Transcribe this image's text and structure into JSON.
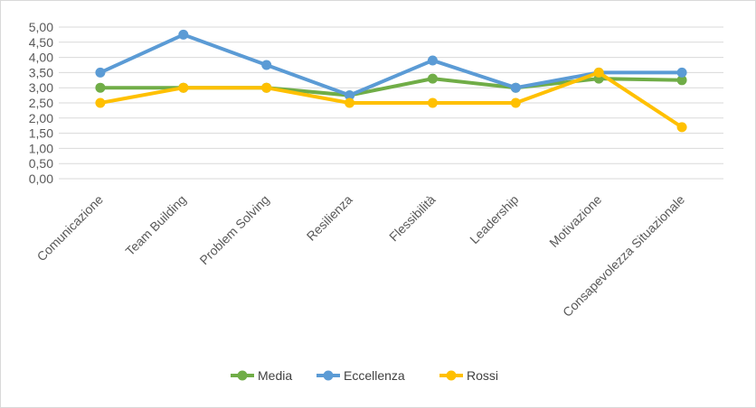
{
  "chart_data": {
    "type": "line",
    "categories": [
      "Comunicazione",
      "Team Building",
      "Problem Solving",
      "Resilienza",
      "Flessibilità",
      "Leadership",
      "Motivazione",
      "Consapevolezza Situazionale"
    ],
    "y_tick_labels": [
      "0,00",
      "0,50",
      "1,00",
      "1,50",
      "2,00",
      "2,50",
      "3,00",
      "3,50",
      "4,00",
      "4,50",
      "5,00"
    ],
    "ylim": [
      0,
      5
    ],
    "y_step": 0.5,
    "grid": true,
    "legend_position": "bottom",
    "title": "",
    "xlabel": "",
    "ylabel": "",
    "series": [
      {
        "name": "Media",
        "color": "#70ad47",
        "values": [
          3.0,
          3.0,
          3.0,
          2.75,
          3.3,
          3.0,
          3.3,
          3.25
        ]
      },
      {
        "name": "Eccellenza",
        "color": "#5b9bd5",
        "values": [
          3.5,
          4.75,
          3.75,
          2.75,
          3.9,
          3.0,
          3.5,
          3.5
        ]
      },
      {
        "name": "Rossi",
        "color": "#ffc000",
        "values": [
          2.5,
          3.0,
          3.0,
          2.5,
          2.5,
          2.5,
          3.5,
          1.7
        ]
      }
    ]
  }
}
